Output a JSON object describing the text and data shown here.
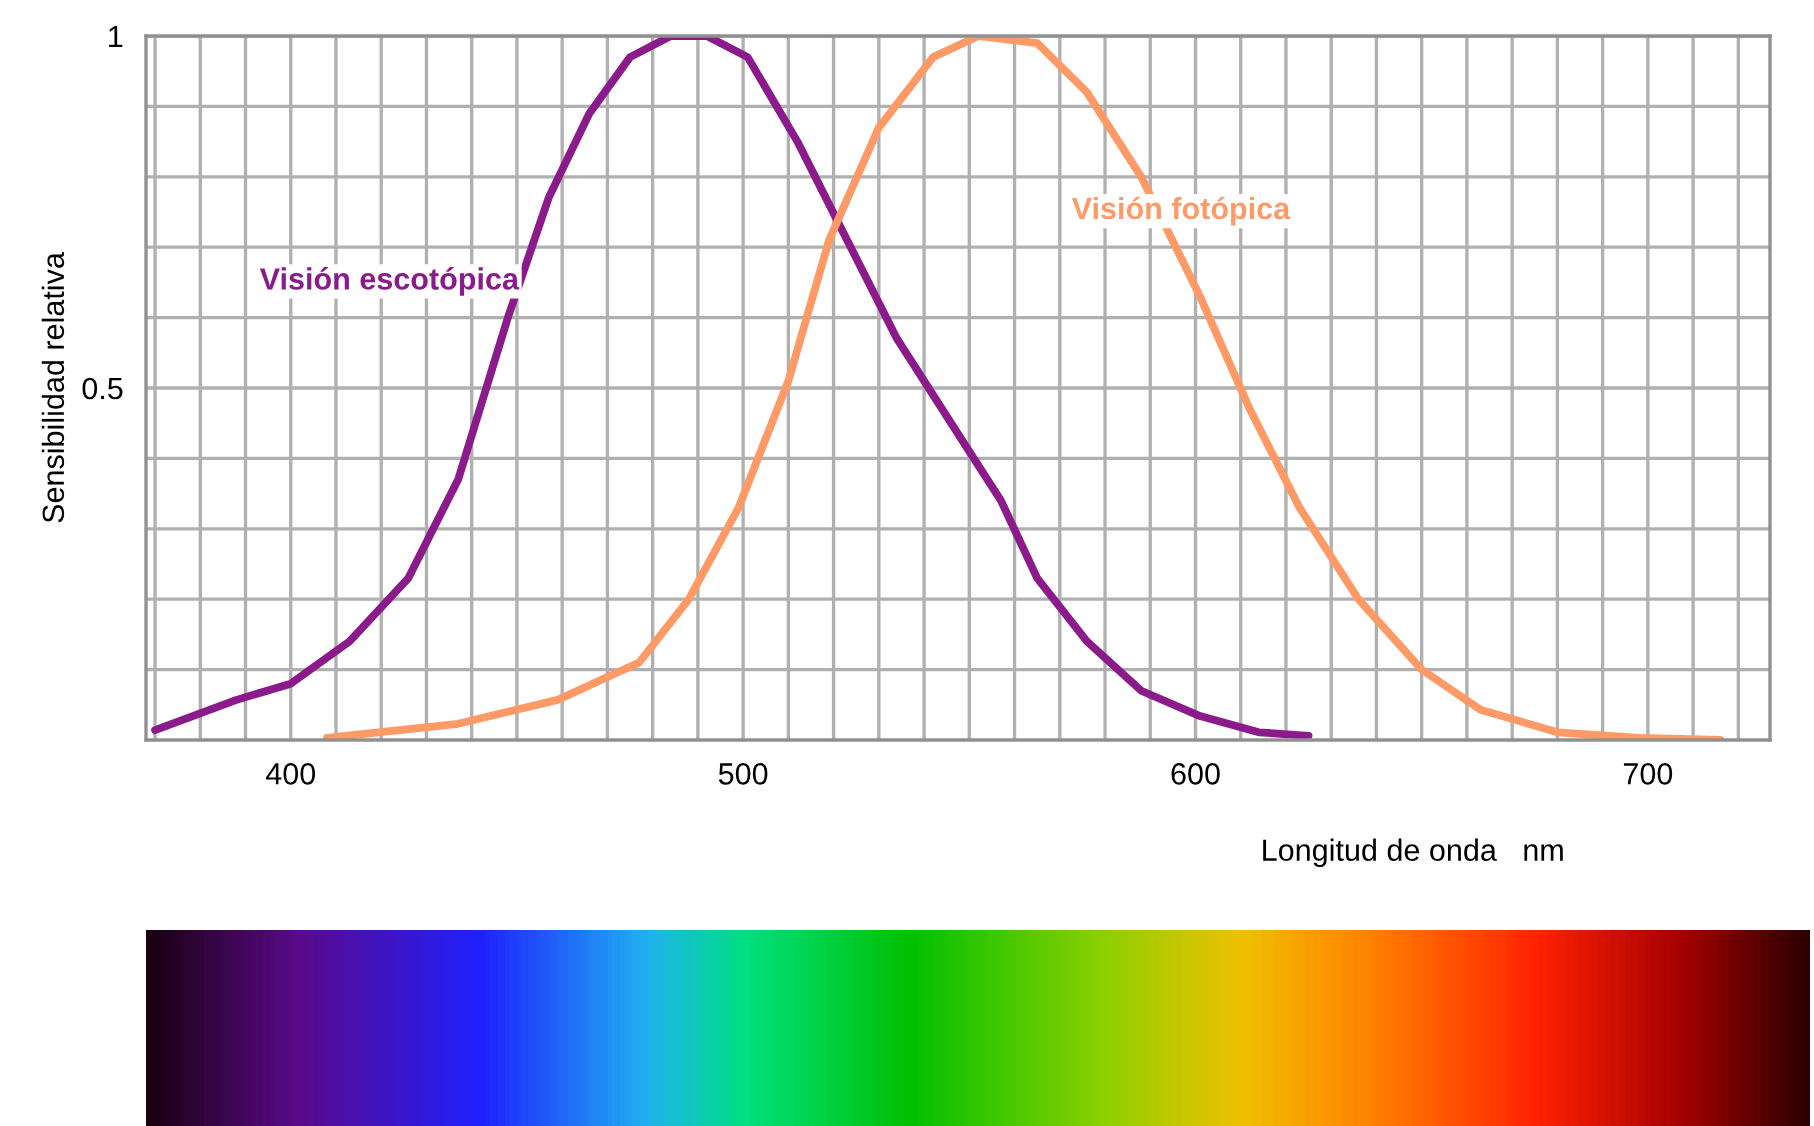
{
  "chart_data": {
    "type": "line",
    "xlabel": "Longitud de onda   nm",
    "ylabel": "Sensibilidad relativa",
    "xlim": [
      368,
      727
    ],
    "ylim": [
      0,
      1
    ],
    "xticks": [
      {
        "value": 370,
        "label": null
      },
      {
        "value": 380,
        "label": null
      },
      {
        "value": 390,
        "label": null
      },
      400,
      {
        "value": 410,
        "label": null
      },
      {
        "value": 420,
        "label": null
      },
      {
        "value": 430,
        "label": null
      },
      {
        "value": 440,
        "label": null
      },
      {
        "value": 450,
        "label": null
      },
      {
        "value": 460,
        "label": null
      },
      {
        "value": 470,
        "label": null
      },
      {
        "value": 480,
        "label": null
      },
      {
        "value": 490,
        "label": null
      },
      500,
      {
        "value": 510,
        "label": null
      },
      {
        "value": 520,
        "label": null
      },
      {
        "value": 530,
        "label": null
      },
      {
        "value": 540,
        "label": null
      },
      {
        "value": 550,
        "label": null
      },
      {
        "value": 560,
        "label": null
      },
      {
        "value": 570,
        "label": null
      },
      {
        "value": 580,
        "label": null
      },
      {
        "value": 590,
        "label": null
      },
      600,
      {
        "value": 610,
        "label": null
      },
      {
        "value": 620,
        "label": null
      },
      {
        "value": 630,
        "label": null
      },
      {
        "value": 640,
        "label": null
      },
      {
        "value": 650,
        "label": null
      },
      {
        "value": 660,
        "label": null
      },
      {
        "value": 670,
        "label": null
      },
      {
        "value": 680,
        "label": null
      },
      {
        "value": 690,
        "label": null
      },
      700,
      {
        "value": 710,
        "label": null
      },
      {
        "value": 720,
        "label": null
      }
    ],
    "yticks": [
      {
        "value": 0.1,
        "label": null
      },
      {
        "value": 0.2,
        "label": null
      },
      {
        "value": 0.3,
        "label": null
      },
      {
        "value": 0.4,
        "label": null
      },
      0.5,
      {
        "value": 0.6,
        "label": null
      },
      {
        "value": 0.7,
        "label": null
      },
      {
        "value": 0.8,
        "label": null
      },
      {
        "value": 0.9,
        "label": null
      },
      1
    ],
    "grid": true,
    "legend": false,
    "marker": "none",
    "line_style": "solid",
    "series": [
      {
        "name": "Visión escotópica",
        "color": "#8b1a8b",
        "x": [
          370,
          388,
          400,
          413,
          426,
          437,
          448,
          457,
          466,
          475,
          484,
          492,
          501,
          512,
          523,
          534,
          548,
          557,
          565,
          576,
          588,
          601,
          614,
          625
        ],
        "values": [
          0.014,
          0.057,
          0.08,
          0.14,
          0.23,
          0.37,
          0.6,
          0.77,
          0.89,
          0.97,
          1.0,
          1.0,
          0.97,
          0.85,
          0.71,
          0.57,
          0.43,
          0.34,
          0.23,
          0.14,
          0.07,
          0.034,
          0.011,
          0.006
        ]
      },
      {
        "name": "Visión fotópica",
        "color": "#ff9966",
        "x": [
          408,
          437,
          459,
          477,
          488,
          499,
          510,
          519,
          530,
          542,
          552,
          565,
          576,
          588,
          601,
          612,
          623,
          636,
          650,
          663,
          680,
          698,
          716
        ],
        "values": [
          0.003,
          0.023,
          0.057,
          0.11,
          0.2,
          0.33,
          0.51,
          0.71,
          0.87,
          0.97,
          1.0,
          0.99,
          0.92,
          0.8,
          0.63,
          0.47,
          0.33,
          0.2,
          0.1,
          0.043,
          0.011,
          0.003,
          0.0
        ]
      }
    ]
  }
}
